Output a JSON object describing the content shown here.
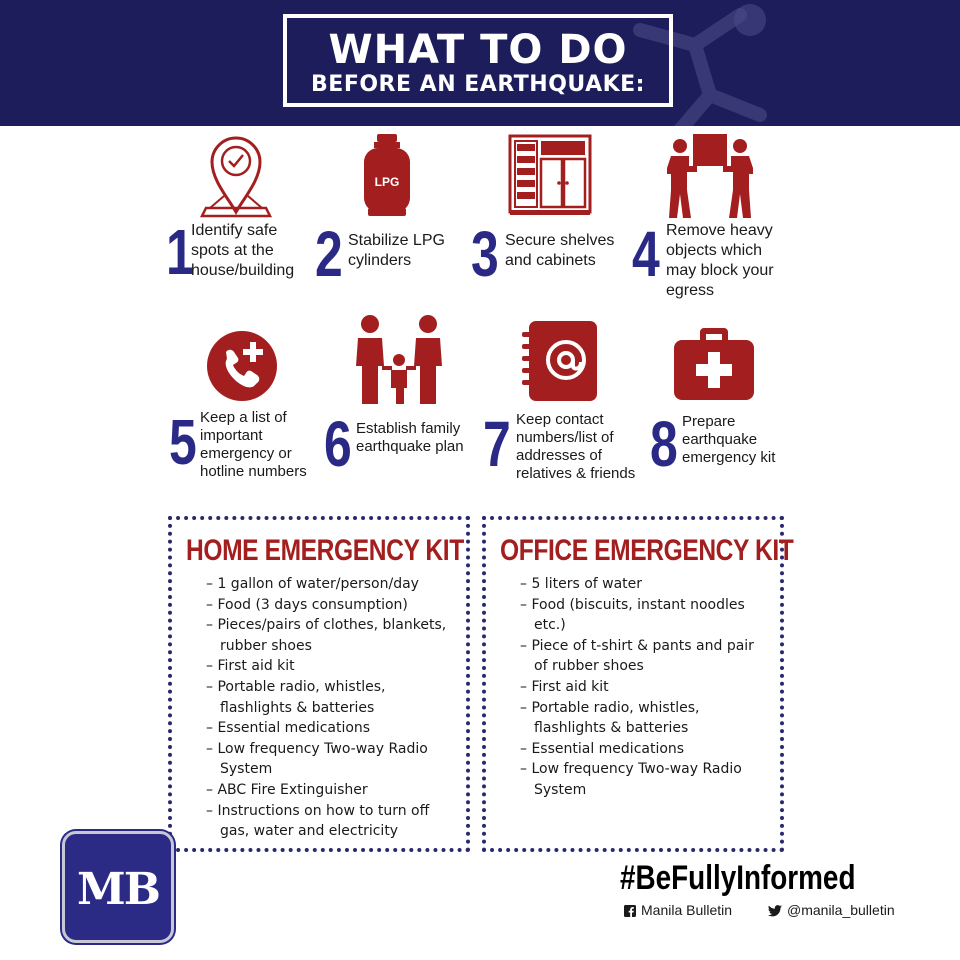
{
  "header": {
    "title_line1": "WHAT TO DO",
    "title_line2": "BEFORE AN EARTHQUAKE:"
  },
  "steps": [
    {
      "number": "1",
      "text": "Identify safe spots at the house/building",
      "icon": "location-pin-icon"
    },
    {
      "number": "2",
      "text": "Stabilize LPG cylinders",
      "icon": "lpg-cylinder-icon",
      "icon_label": "LPG"
    },
    {
      "number": "3",
      "text": "Secure shelves and cabinets",
      "icon": "cabinet-icon"
    },
    {
      "number": "4",
      "text": "Remove heavy objects which may block your egress",
      "icon": "people-carrying-box-icon"
    },
    {
      "number": "5",
      "text": "Keep a list of important emergency or hotline numbers",
      "icon": "phone-icon"
    },
    {
      "number": "6",
      "text": "Establish family earthquake plan",
      "icon": "family-icon"
    },
    {
      "number": "7",
      "text": "Keep contact numbers/list of addresses of relatives & friends",
      "icon": "address-book-icon"
    },
    {
      "number": "8",
      "text": "Prepare earthquake emergency kit",
      "icon": "first-aid-kit-icon"
    }
  ],
  "home_kit": {
    "title": "HOME EMERGENCY KIT",
    "items": [
      "1 gallon of water/person/day",
      "Food (3 days consumption)",
      "Pieces/pairs of clothes, blankets, rubber shoes",
      "First aid kit",
      "Portable radio, whistles, flashlights & batteries",
      "Essential medications",
      "Low frequency Two-way Radio System",
      "ABC Fire Extinguisher",
      "Instructions on how to turn off gas, water and electricity"
    ]
  },
  "office_kit": {
    "title": "OFFICE EMERGENCY KIT",
    "items": [
      "5 liters of water",
      "Food (biscuits, instant noodles etc.)",
      "Piece of t-shirt & pants and pair of rubber shoes",
      "First aid kit",
      "Portable radio, whistles, flashlights & batteries",
      "Essential medications",
      "Low frequency Two-way Radio System"
    ]
  },
  "footer": {
    "logo_text": "MB",
    "hashtag": "#BeFullyInformed",
    "facebook": "Manila Bulletin",
    "twitter": "@manila_bulletin"
  },
  "colors": {
    "navy": "#1d1d5c",
    "number_blue": "#2a2a86",
    "icon_red": "#a31f1f",
    "kit_title_red": "#a31f1f"
  }
}
